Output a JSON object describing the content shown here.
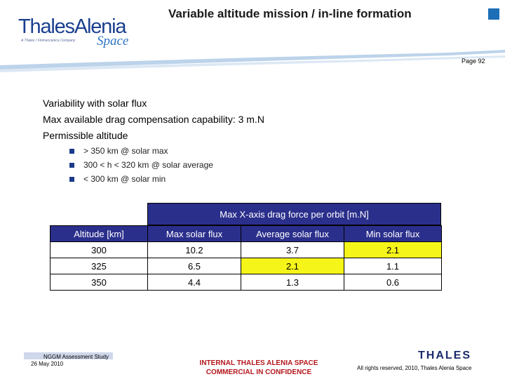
{
  "header": {
    "logo_text": "ThalesAlenia",
    "logo_space": "Space",
    "logo_tagline": "A Thales / Finmeccanica Company",
    "title": "Variable altitude mission / in-line formation",
    "page_label": "Page 92"
  },
  "body": {
    "lines": [
      "Variability with solar flux",
      "Max available drag compensation capability: 3 m.N",
      "Permissible altitude"
    ],
    "bullets": [
      "> 350 km @ solar max",
      "300 < h < 320 km @ solar average",
      "< 300 km @ solar min"
    ]
  },
  "table": {
    "group_header": "Max X-axis drag force per orbit [m.N]",
    "columns": [
      "Altitude [km]",
      "Max solar flux",
      "Average solar flux",
      "Min solar flux"
    ],
    "rows": [
      [
        "300",
        "10.2",
        "3.7",
        "2.1"
      ],
      [
        "325",
        "6.5",
        "2.1",
        "1.1"
      ],
      [
        "350",
        "4.4",
        "1.3",
        "0.6"
      ]
    ],
    "highlight_color": "#f5f51a",
    "header_color": "#2b2f8c"
  },
  "footer": {
    "assessment": "NGGM Assessment Study",
    "date": "26 May 2010",
    "confidential_line1": "INTERNAL THALES ALENIA SPACE",
    "confidential_line2": "COMMERCIAL IN CONFIDENCE",
    "thales_logo": "THALES",
    "rights": "All rights reserved, 2010, Thales Alenia Space"
  }
}
